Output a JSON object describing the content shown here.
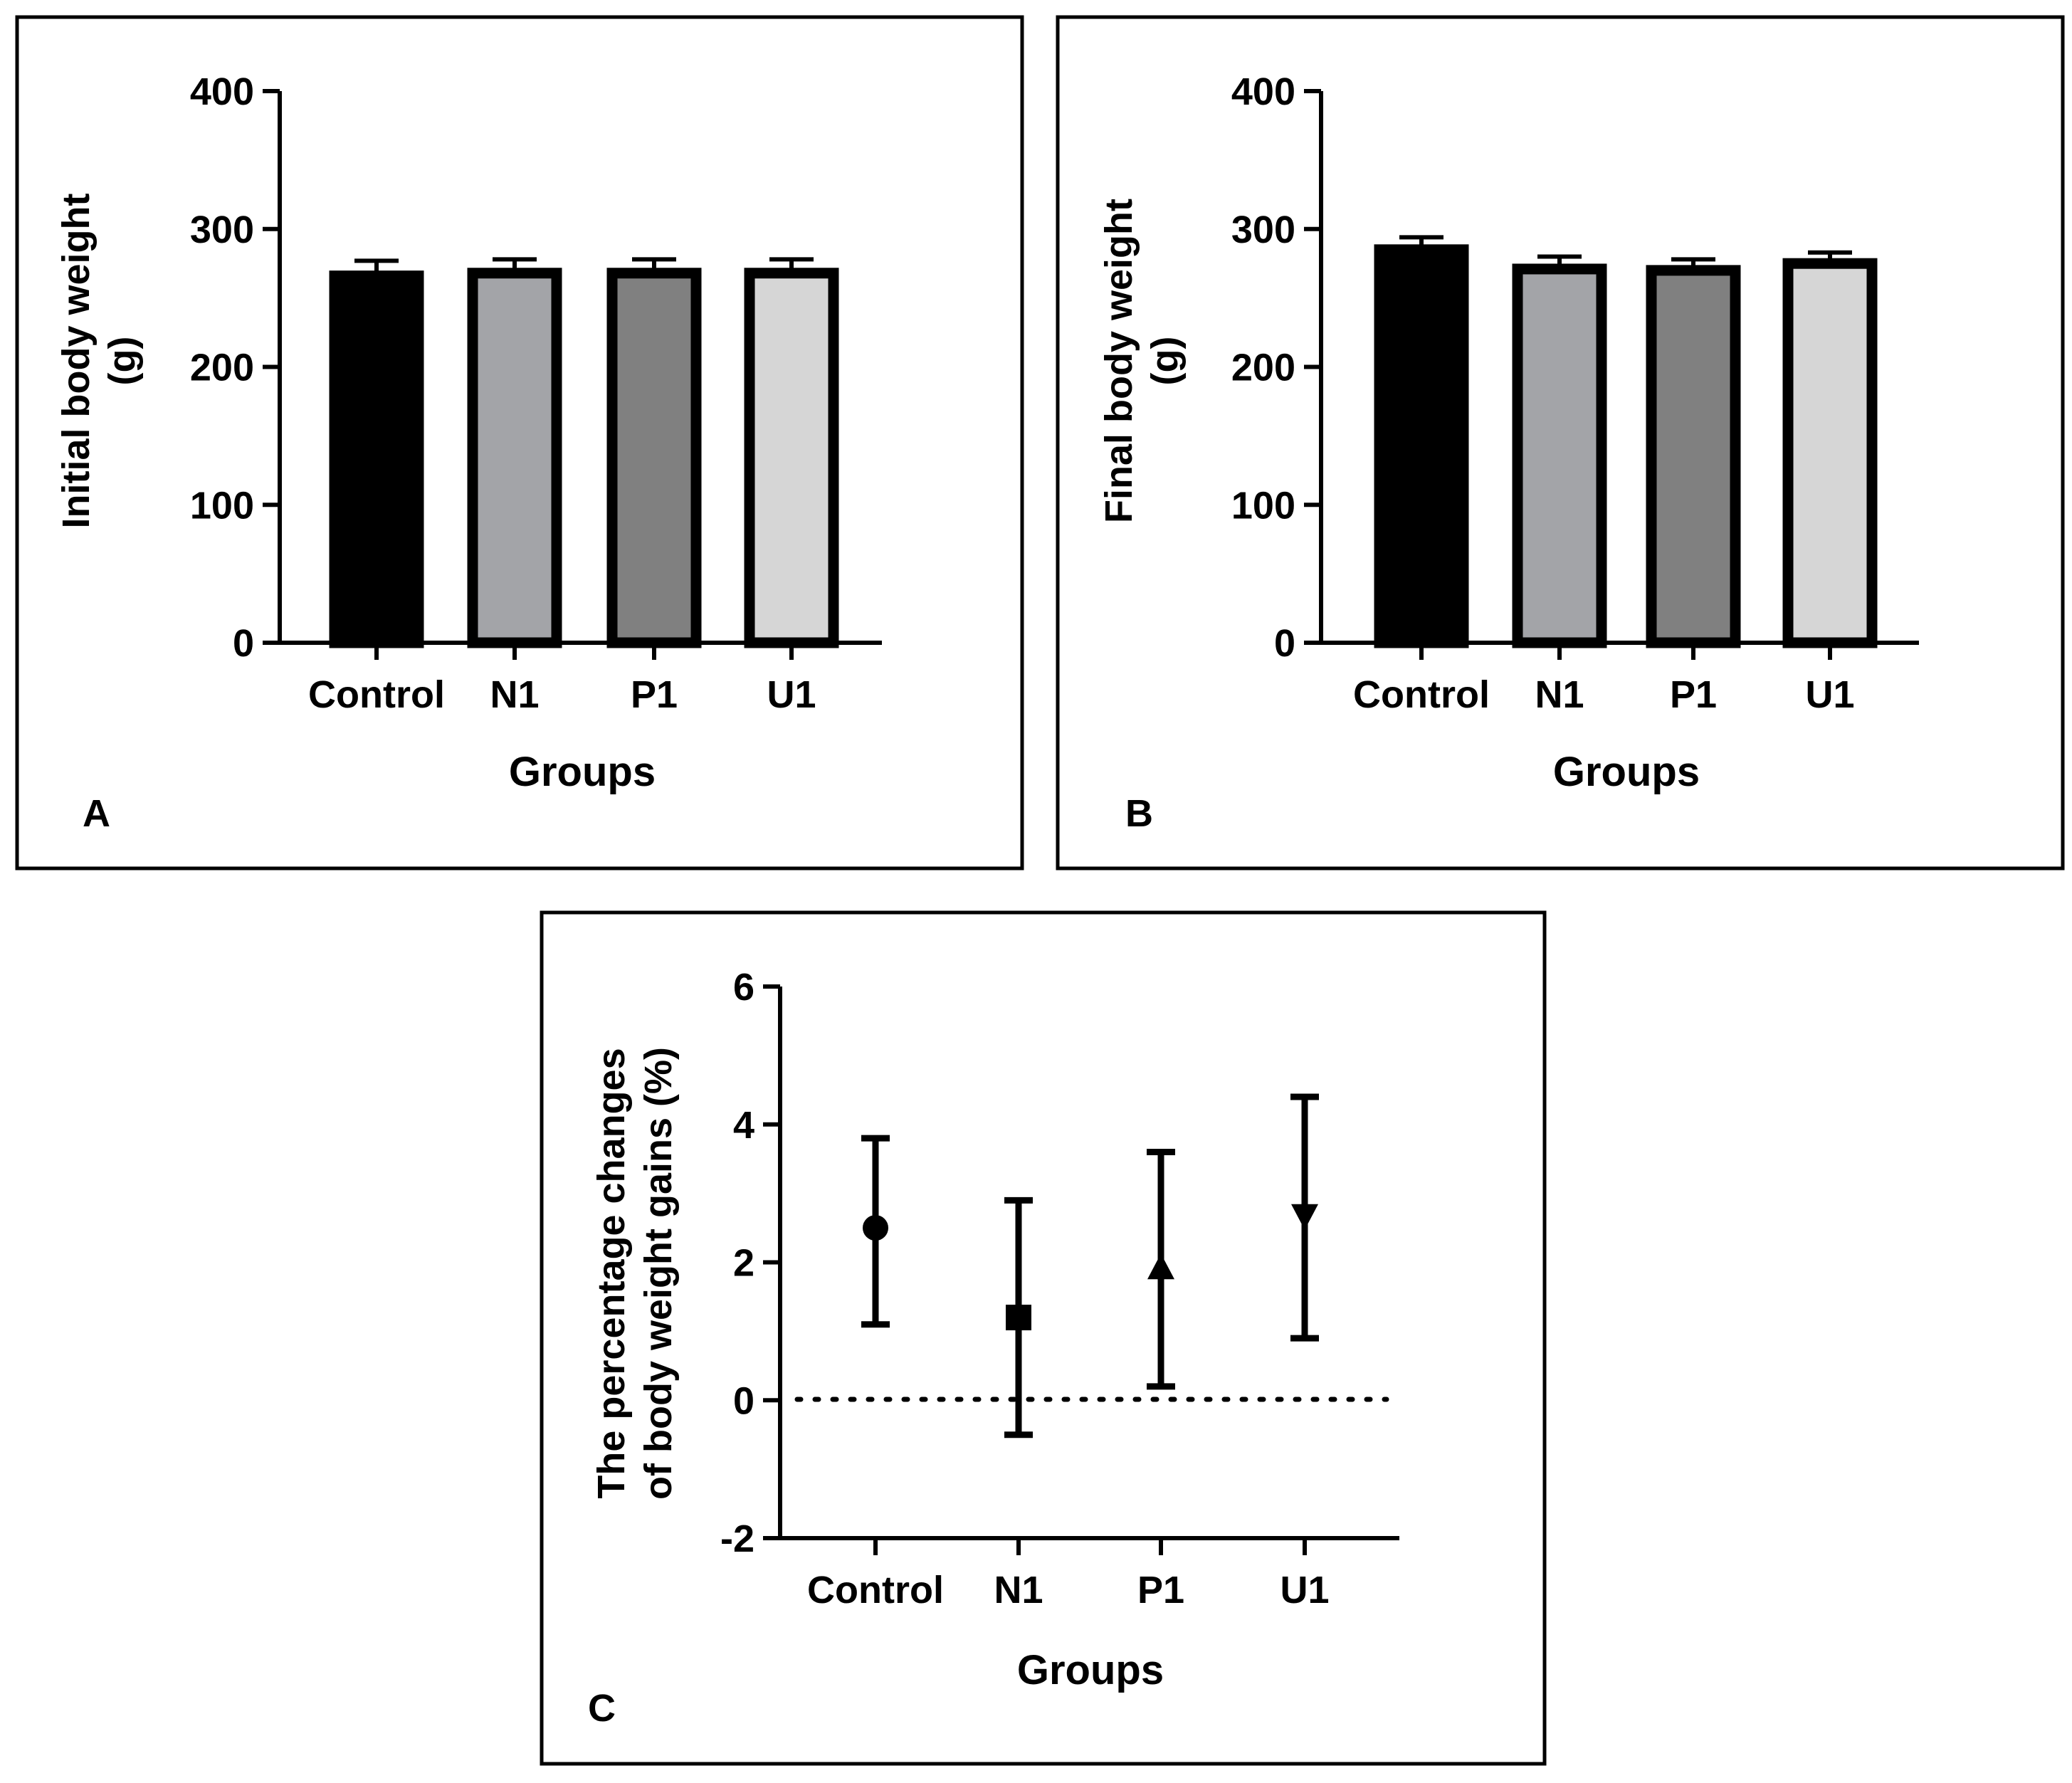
{
  "chart_data": [
    {
      "panel": "A",
      "type": "bar",
      "title": "",
      "xlabel": "Groups",
      "ylabel_lines": [
        "Initial body weight",
        "(g)"
      ],
      "categories": [
        "Control",
        "N1",
        "P1",
        "U1"
      ],
      "values": [
        266,
        268,
        268,
        268
      ],
      "errors": [
        11,
        10,
        10,
        10
      ],
      "ylim": [
        0,
        400
      ],
      "yticks": [
        "0",
        "100",
        "200",
        "300",
        "400"
      ],
      "ytick_values": [
        0,
        100,
        200,
        300,
        400
      ],
      "colors": [
        "#000000",
        "#a3a4a8",
        "#808080",
        "#d6d6d6"
      ]
    },
    {
      "panel": "B",
      "type": "bar",
      "title": "",
      "xlabel": "Groups",
      "ylabel_lines": [
        "Final body weight",
        "(g)"
      ],
      "categories": [
        "Control",
        "N1",
        "P1",
        "U1"
      ],
      "values": [
        285,
        271,
        270,
        275
      ],
      "errors": [
        9,
        9,
        8,
        8
      ],
      "ylim": [
        0,
        400
      ],
      "yticks": [
        "0",
        "100",
        "200",
        "300",
        "400"
      ],
      "ytick_values": [
        0,
        100,
        200,
        300,
        400
      ],
      "colors": [
        "#000000",
        "#a3a4a8",
        "#808080",
        "#d6d6d6"
      ]
    },
    {
      "panel": "C",
      "type": "scatter",
      "title": "",
      "xlabel": "Groups",
      "ylabel_lines": [
        "The percentage changes",
        "of body weight gains (%)"
      ],
      "categories": [
        "Control",
        "N1",
        "P1",
        "U1"
      ],
      "values": [
        2.5,
        1.2,
        1.9,
        2.7
      ],
      "err_low": [
        1.1,
        -0.5,
        0.2,
        0.9
      ],
      "err_high": [
        3.8,
        2.9,
        3.6,
        4.4
      ],
      "markers": [
        "circle",
        "square",
        "triangle-up",
        "triangle-down"
      ],
      "ylim": [
        -2,
        6
      ],
      "yticks": [
        "-2",
        "0",
        "2",
        "4",
        "6"
      ],
      "ytick_values": [
        -2,
        0,
        2,
        4,
        6
      ],
      "reference_line": 0
    }
  ]
}
